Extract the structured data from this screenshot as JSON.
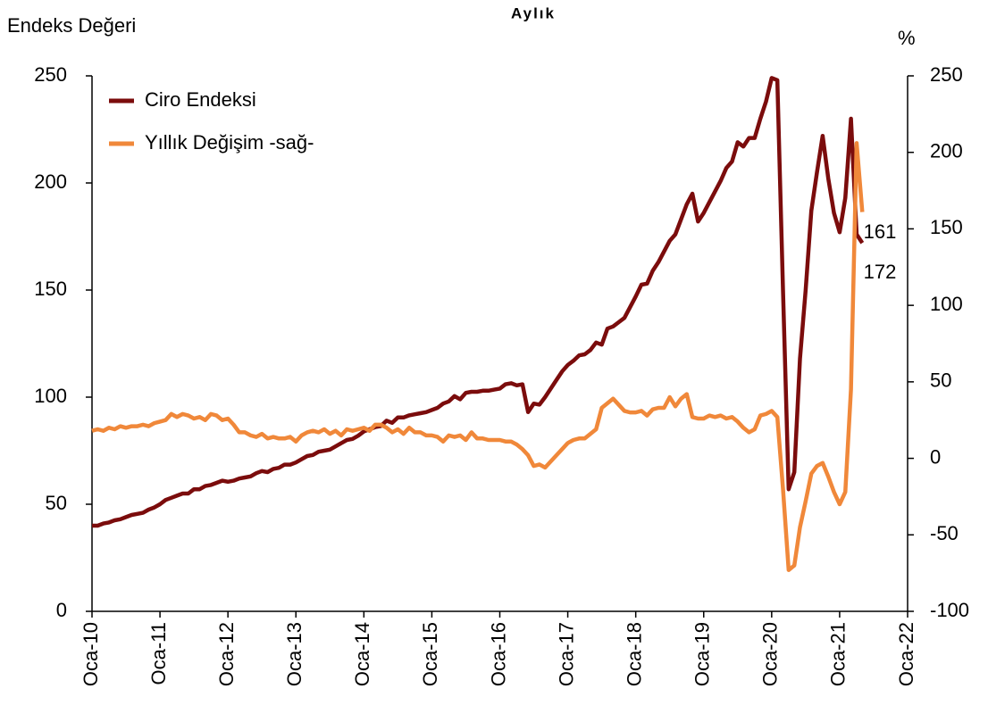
{
  "chart_data": {
    "type": "line",
    "title": "Aylık",
    "ylabel": "Endeks Değeri",
    "y2label": "%",
    "categories": [
      "Oca-10",
      null,
      null,
      null,
      null,
      null,
      null,
      null,
      null,
      null,
      null,
      null,
      "Oca-11",
      null,
      null,
      null,
      null,
      null,
      null,
      null,
      null,
      null,
      null,
      null,
      "Oca-12",
      null,
      null,
      null,
      null,
      null,
      null,
      null,
      null,
      null,
      null,
      null,
      "Oca-13",
      null,
      null,
      null,
      null,
      null,
      null,
      null,
      null,
      null,
      null,
      null,
      "Oca-14",
      null,
      null,
      null,
      null,
      null,
      null,
      null,
      null,
      null,
      null,
      null,
      "Oca-15",
      null,
      null,
      null,
      null,
      null,
      null,
      null,
      null,
      null,
      null,
      null,
      "Oca-16",
      null,
      null,
      null,
      null,
      null,
      null,
      null,
      null,
      null,
      null,
      null,
      "Oca-17",
      null,
      null,
      null,
      null,
      null,
      null,
      null,
      null,
      null,
      null,
      null,
      "Oca-18",
      null,
      null,
      null,
      null,
      null,
      null,
      null,
      null,
      null,
      null,
      null,
      "Oca-19",
      null,
      null,
      null,
      null,
      null,
      null,
      null,
      null,
      null,
      null,
      null,
      "Oca-20",
      null,
      null,
      null,
      null,
      null,
      null,
      null,
      null,
      null,
      null,
      null,
      "Oca-21",
      null,
      null,
      null,
      null,
      null,
      null,
      null,
      null,
      null,
      null,
      null,
      "Oca-22"
    ],
    "series": [
      {
        "name": "Ciro Endeksi",
        "color": "#7b0c0c",
        "values": [
          40,
          40,
          41,
          41.5,
          42.5,
          43,
          44,
          45,
          45.5,
          46,
          47.5,
          48.5,
          50,
          52,
          53,
          54,
          55,
          55,
          57,
          57,
          58.5,
          59,
          60,
          61,
          60.5,
          61,
          62,
          62.5,
          63,
          64.5,
          65.5,
          65,
          66.5,
          67,
          68.5,
          68.5,
          69.5,
          71,
          72.5,
          73,
          74.5,
          75,
          75.5,
          77,
          78.5,
          80,
          80.5,
          82,
          84,
          85,
          86,
          86.5,
          89,
          88,
          90.5,
          90.5,
          91.5,
          92,
          92.5,
          93,
          94,
          95,
          97,
          98,
          100.5,
          99,
          102,
          102.5,
          102.5,
          103,
          103,
          103.5,
          104,
          106,
          106.5,
          105.5,
          106,
          93,
          97,
          96.5,
          100,
          104,
          108,
          112,
          115,
          117,
          119.5,
          120,
          122,
          125.5,
          124.5,
          132,
          133,
          135,
          137,
          142,
          147,
          152.5,
          153,
          159,
          163,
          168,
          173,
          176,
          183,
          190,
          195,
          182,
          186,
          191,
          196,
          201,
          207,
          210,
          219,
          217,
          221,
          221,
          230,
          238,
          249,
          248,
          150,
          57,
          65,
          118,
          150,
          187,
          205,
          222,
          202,
          186,
          177,
          193,
          230,
          176,
          172,
          null,
          null,
          null,
          null,
          null,
          null,
          null,
          null
        ],
        "value_labels": {
          "136": "172"
        }
      },
      {
        "name": "Yıllık Değişim -sağ-",
        "color": "#f0883a",
        "axis": "y2",
        "values": [
          18,
          19,
          18,
          20,
          19,
          21,
          20,
          21,
          21,
          22,
          21,
          23,
          24,
          25,
          29,
          27,
          29,
          28,
          26,
          27,
          25,
          29,
          28,
          25,
          26,
          22,
          17,
          17,
          15,
          14,
          16,
          13,
          14,
          13,
          13,
          14,
          11,
          15,
          17,
          18,
          17,
          19,
          16,
          18,
          15,
          19,
          18,
          19,
          20,
          18,
          22,
          22,
          20,
          17,
          19,
          16,
          20,
          17,
          17,
          15,
          15,
          14,
          11,
          15,
          14,
          15,
          12,
          17,
          13,
          13,
          12,
          12,
          12,
          11,
          11,
          9,
          6,
          2,
          -5,
          -4,
          -6,
          -2,
          2,
          6,
          10,
          12,
          13,
          13,
          16,
          19,
          33,
          36,
          39,
          35,
          31,
          30,
          30,
          31,
          28,
          32,
          33,
          33,
          40,
          34,
          39,
          42,
          27,
          26,
          26,
          28,
          27,
          28,
          26,
          27,
          24,
          20,
          17,
          19,
          28,
          29,
          31,
          27,
          -20,
          -73,
          -70,
          -45,
          -28,
          -10,
          -5,
          -3,
          -12,
          -22,
          -30,
          -22,
          45,
          206,
          161,
          null,
          null,
          null,
          null,
          null,
          null,
          null,
          null
        ]
      }
    ],
    "ylim": [
      0,
      250
    ],
    "yticks": [
      0,
      50,
      100,
      150,
      200,
      250
    ],
    "y2lim": [
      -100,
      250
    ],
    "y2ticks": [
      -100,
      -50,
      0,
      50,
      100,
      150,
      200,
      250
    ],
    "legend": "upper left",
    "grid": false
  }
}
